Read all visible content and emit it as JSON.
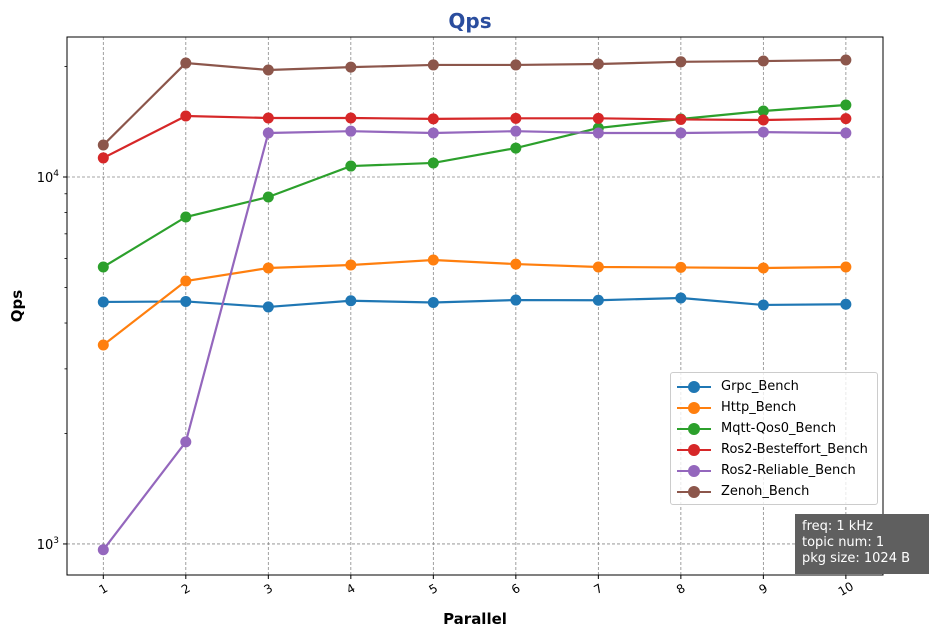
{
  "chart_data": {
    "type": "line",
    "title": "Qps",
    "title_color": "#2a4d9e",
    "xlabel": "Parallel",
    "ylabel": "Qps",
    "yscale": "log",
    "xlim": [
      0.56,
      10.45
    ],
    "ylim": [
      823,
      24070
    ],
    "grid": true,
    "legend_position": "lower-right",
    "x": [
      1,
      2,
      3,
      4,
      5,
      6,
      7,
      8,
      9,
      10
    ],
    "x_tick_labels": [
      "1",
      "2",
      "3",
      "4",
      "5",
      "6",
      "7",
      "8",
      "9",
      "10"
    ],
    "y_tick_labels": [
      {
        "value": 1000,
        "base": "10",
        "exp": "3"
      },
      {
        "value": 10000,
        "base": "10",
        "exp": "4"
      }
    ],
    "series": [
      {
        "name": "Grpc_Bench",
        "color": "#1f77b4",
        "values": [
          4565,
          4580,
          4425,
          4600,
          4550,
          4620,
          4615,
          4680,
          4480,
          4500
        ]
      },
      {
        "name": "Http_Bench",
        "color": "#ff7f0e",
        "values": [
          3485,
          5206,
          5650,
          5757,
          5940,
          5790,
          5686,
          5670,
          5650,
          5686
        ]
      },
      {
        "name": "Mqtt-Qos0_Bench",
        "color": "#2ca02c",
        "values": [
          5686,
          7780,
          8820,
          10710,
          10920,
          11990,
          13600,
          14390,
          15130,
          15710
        ]
      },
      {
        "name": "Ros2-Besteffort_Bench",
        "color": "#d62728",
        "values": [
          11270,
          14660,
          14480,
          14480,
          14400,
          14450,
          14450,
          14350,
          14300,
          14420
        ]
      },
      {
        "name": "Ros2-Reliable_Bench",
        "color": "#9467bd",
        "values": [
          964,
          1897,
          13180,
          13330,
          13180,
          13330,
          13180,
          13180,
          13250,
          13180
        ]
      },
      {
        "name": "Zenoh_Bench",
        "color": "#8c564b",
        "values": [
          12220,
          20440,
          19570,
          19920,
          20200,
          20200,
          20320,
          20600,
          20700,
          20840
        ]
      }
    ],
    "annotation": {
      "lines": [
        "freq: 1 kHz",
        "topic num: 1",
        "pkg size: 1024  B"
      ]
    }
  }
}
